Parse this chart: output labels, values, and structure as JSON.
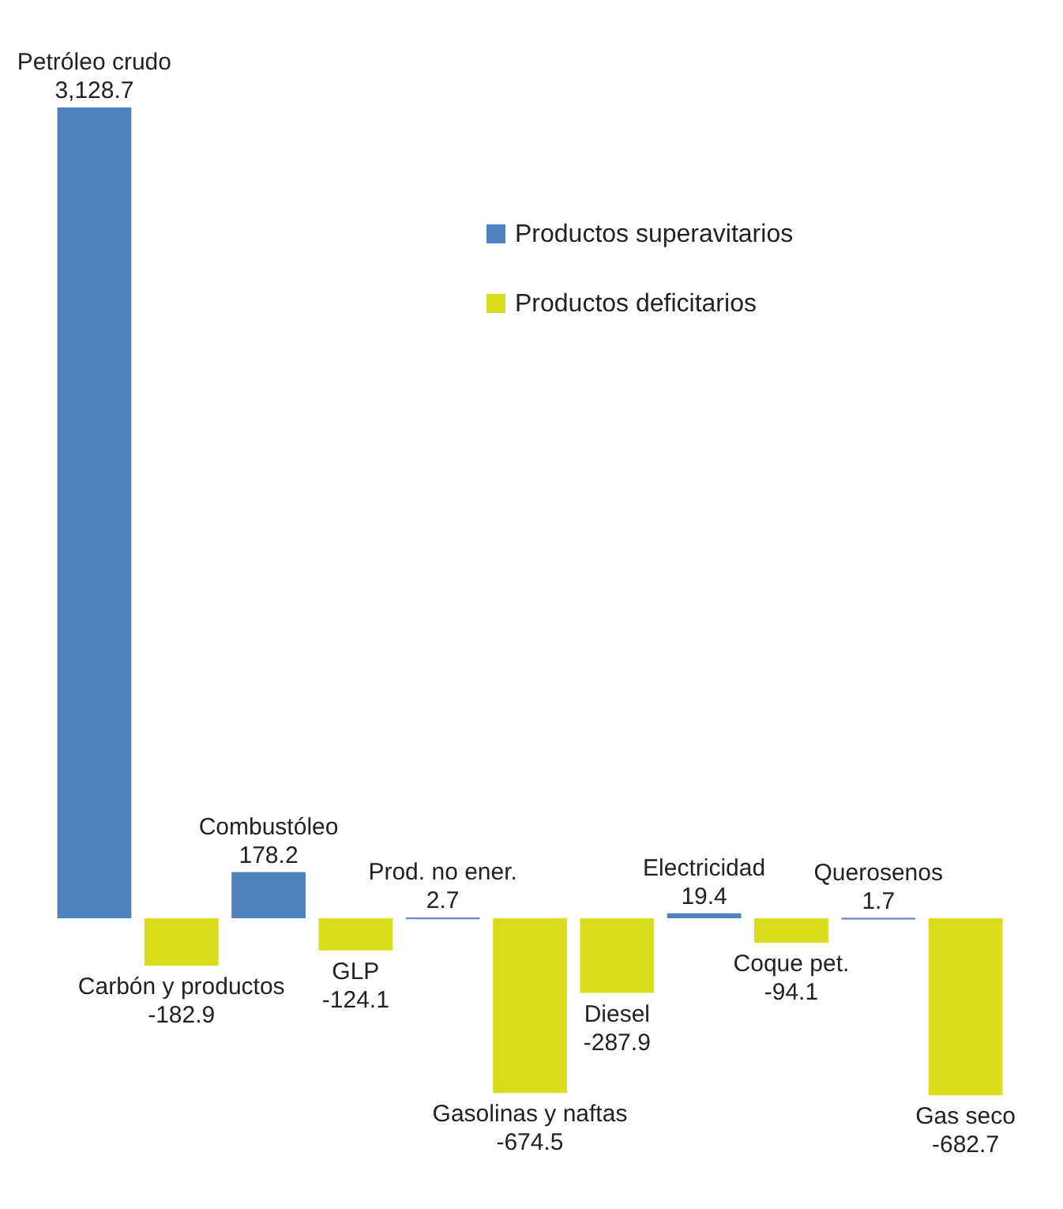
{
  "chart_data": {
    "type": "bar",
    "categories": [
      "Petróleo crudo",
      "Carbón y productos",
      "Combustóleo",
      "GLP",
      "Prod. no ener.",
      "Gasolinas y naftas",
      "Diesel",
      "Electricidad",
      "Coque pet.",
      "Querosenos",
      "Gas seco"
    ],
    "series": [
      {
        "name": "Productos superavitarios",
        "color": "#4f81bd",
        "values": [
          3128.7,
          null,
          178.2,
          null,
          2.7,
          null,
          null,
          19.4,
          null,
          1.7,
          null
        ],
        "value_labels": [
          "3,128.7",
          null,
          "178.2",
          null,
          "2.7",
          null,
          null,
          "19.4",
          null,
          "1.7",
          null
        ]
      },
      {
        "name": "Productos deficitarios",
        "color": "#d9dc1a",
        "values": [
          null,
          -182.9,
          null,
          -124.1,
          null,
          -674.5,
          -287.9,
          null,
          -94.1,
          null,
          -682.7
        ],
        "value_labels": [
          null,
          "-182.9",
          null,
          "-124.1",
          null,
          "-674.5",
          "-287.9",
          null,
          "-94.1",
          null,
          "-682.7"
        ]
      }
    ],
    "legend": "top",
    "data_labels": true
  }
}
